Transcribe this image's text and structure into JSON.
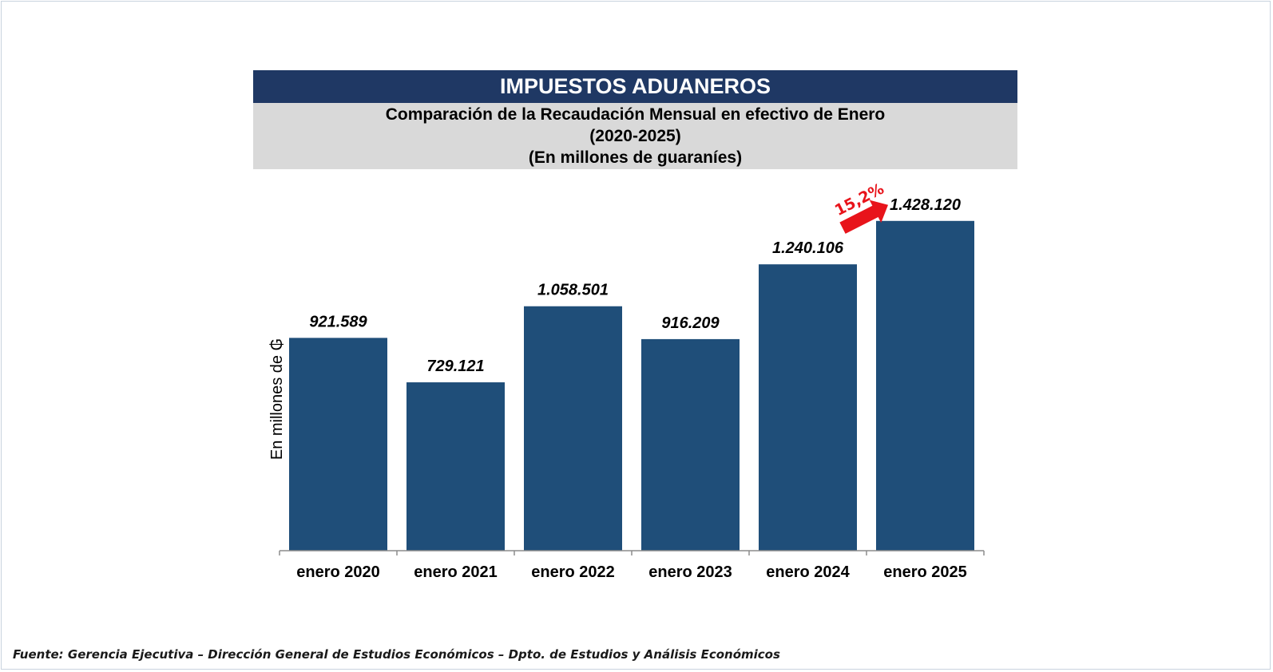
{
  "header": {
    "title": "IMPUESTOS ADUANEROS",
    "subtitle_line1": "Comparación de la Recaudación Mensual en efectivo de Enero",
    "subtitle_line2": "(2020-2025)",
    "subtitle_line3": "(En millones de guaraníes)"
  },
  "chart_data": {
    "type": "bar",
    "categories": [
      "enero 2020",
      "enero 2021",
      "enero 2022",
      "enero 2023",
      "enero 2024",
      "enero 2025"
    ],
    "values": [
      921589,
      729121,
      1058501,
      916209,
      1240106,
      1428120
    ],
    "data_labels": [
      "921.589",
      "729.121",
      "1.058.501",
      "916.209",
      "1.240.106",
      "1.428.120"
    ],
    "ylabel": "En millones de ₲",
    "ylim": [
      0,
      1500000
    ],
    "annotation": {
      "text": "15,2%",
      "from_category": "enero 2024",
      "to_category": "enero 2025"
    },
    "colors": {
      "bar": "#1f4e79",
      "annotation": "#e8141b"
    }
  },
  "footer": {
    "source": "Fuente: Gerencia Ejecutiva – Dirección General de Estudios Económicos – Dpto. de Estudios y Análisis Económicos"
  }
}
